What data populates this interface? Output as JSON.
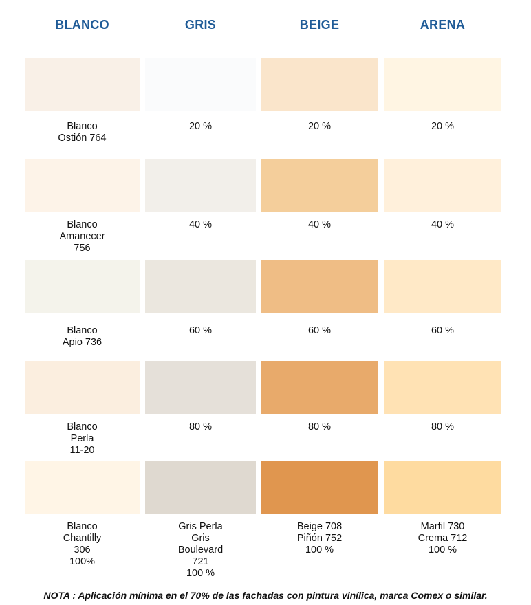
{
  "headers": [
    "BLANCO",
    "GRIS",
    "BEIGE",
    "ARENA"
  ],
  "rows": [
    {
      "colors": [
        "#f9f0e7",
        "#fafbfc",
        "#fae5cb",
        "#fff5e3"
      ],
      "labels": [
        "Blanco\nOstión 764",
        "20 %",
        "20 %",
        "20 %"
      ]
    },
    {
      "colors": [
        "#fdf3e8",
        "#f2efea",
        "#f4ce9b",
        "#fff0db"
      ],
      "labels": [
        "Blanco\nAmanecer\n756",
        "40 %",
        "40 %",
        "40 %"
      ]
    },
    {
      "colors": [
        "#f4f3eb",
        "#ebe7df",
        "#efbd85",
        "#ffe9c7"
      ],
      "labels": [
        "Blanco\nApio 736",
        "60 %",
        "60 %",
        "60 %"
      ]
    },
    {
      "colors": [
        "#fbeedf",
        "#e5e0d9",
        "#e8aa6b",
        "#ffe2b4"
      ],
      "labels": [
        "Blanco\nPerla\n11-20",
        "80 %",
        "80 %",
        "80 %"
      ]
    },
    {
      "colors": [
        "#fff5e6",
        "#dfd9d0",
        "#e0964f",
        "#fedba0"
      ],
      "labels": [
        "Blanco\nChantilly\n306\n100%",
        "Gris Perla\nGris\nBoulevard\n721\n100 %",
        "Beige 708\nPiñón 752\n100 %",
        "Marfil 730\nCrema 712\n100 %"
      ]
    }
  ],
  "note": "NOTA : Aplicación mínima en el 70% de las fachadas con pintura vinílica, marca Comex o similar.",
  "header_color": "#1f5b97"
}
